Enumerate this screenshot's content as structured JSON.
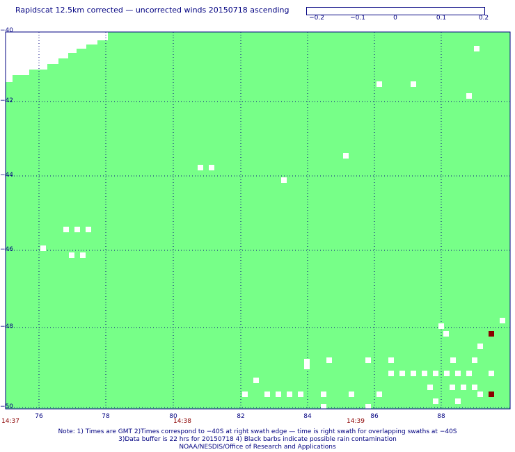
{
  "title": "Rapidscat 12.5km corrected — uncorrected winds 20150718 ascending",
  "colorbar": {
    "labels": [
      "−0.2",
      "−0.1",
      "0",
      "0.1",
      "0.2"
    ],
    "colors": [
      "#0000a0",
      "#0000ff",
      "#00bfff",
      "#00ffff",
      "#7fff7f",
      "#ffff00",
      "#ff8000",
      "#ff0000",
      "#8b0000"
    ]
  },
  "map": {
    "land_color": "#ffffff",
    "ocean_color": "#77ff88",
    "grid_color": "#000080",
    "lon_ticks": [
      "76",
      "78",
      "80",
      "82",
      "84",
      "86",
      "88"
    ],
    "lat_ticks": [
      "−40",
      "−42",
      "−44",
      "−46",
      "−48",
      "−50"
    ],
    "time_labels": [
      "14:37",
      "14:38",
      "14:39"
    ]
  },
  "notes": {
    "line1": "Note: 1) Times are GMT 2)Times correspond to −40S at right swath edge — time is right swath for overlapping swaths at −40S",
    "line2": "3)Data buffer is 22 hrs for 20150718 4) Black barbs indicate possible rain contamination",
    "line3": "NOAA/NESDIS/Office of Research and Applications"
  }
}
